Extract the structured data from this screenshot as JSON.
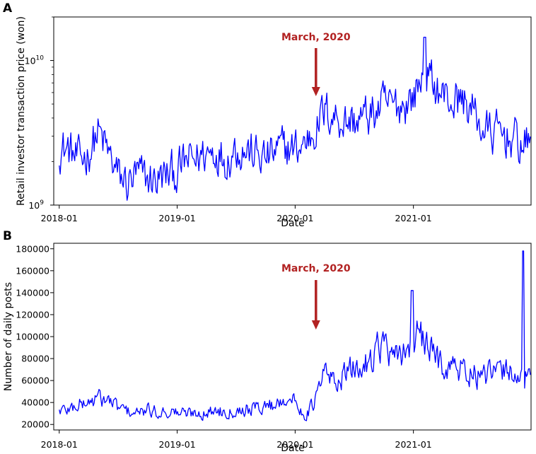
{
  "chart_data": [
    {
      "type": "line",
      "panel_label": "A",
      "xlabel": "Date",
      "ylabel": "Retail investor transaction price (won)",
      "yscale": "log",
      "xlim": [
        "2017-12-15",
        "2021-12-31"
      ],
      "ylim": [
        1000000000,
        20000000000
      ],
      "x_ticks": [
        "2018-01",
        "2019-01",
        "2020-01",
        "2021-01"
      ],
      "y_ticks": [
        {
          "value": 1000000000,
          "base": "10",
          "exp": "9"
        },
        {
          "value": 10000000000,
          "base": "10",
          "exp": "10"
        }
      ],
      "grid": false,
      "line_color": "#0000ff",
      "annotation": {
        "text": "March, 2020",
        "date": "2020-03-01",
        "color": "#b22222"
      },
      "series": [
        {
          "x": [
            "2018-01-01",
            "2018-02-01",
            "2018-03-01",
            "2018-04-01",
            "2018-05-01",
            "2018-06-01",
            "2018-07-01",
            "2018-08-01",
            "2018-09-01",
            "2018-10-01",
            "2018-11-01",
            "2018-12-01",
            "2019-01-01",
            "2019-02-01",
            "2019-03-01",
            "2019-04-01",
            "2019-05-01",
            "2019-06-01",
            "2019-07-01",
            "2019-08-01",
            "2019-09-01",
            "2019-10-01",
            "2019-11-01",
            "2019-12-01",
            "2020-01-01",
            "2020-02-01",
            "2020-03-01",
            "2020-04-01",
            "2020-05-01",
            "2020-06-01",
            "2020-07-01",
            "2020-08-01",
            "2020-09-01",
            "2020-10-01",
            "2020-11-01",
            "2020-12-01",
            "2021-01-01",
            "2021-02-01",
            "2021-03-01",
            "2021-04-01",
            "2021-05-01",
            "2021-06-01",
            "2021-07-01",
            "2021-08-01",
            "2021-09-01",
            "2021-10-01",
            "2021-11-01",
            "2021-12-01"
          ],
          "values": [
            2500000000,
            2400000000,
            2000000000,
            2300000000,
            3200000000,
            2300000000,
            1600000000,
            1400000000,
            1600000000,
            1500000000,
            1500000000,
            1600000000,
            1700000000,
            2000000000,
            2100000000,
            2300000000,
            2400000000,
            2100000000,
            2500000000,
            2400000000,
            2200000000,
            2100000000,
            2300000000,
            2500000000,
            2400000000,
            2700000000,
            3400000000,
            4400000000,
            4200000000,
            3800000000,
            3800000000,
            4000000000,
            4300000000,
            4900000000,
            4800000000,
            5000000000,
            5600000000,
            8000000000,
            7000000000,
            5800000000,
            5200000000,
            5400000000,
            4600000000,
            3400000000,
            3100000000,
            3100000000,
            2900000000,
            2600000000
          ]
        }
      ]
    },
    {
      "type": "line",
      "panel_label": "B",
      "xlabel": "Date",
      "ylabel": "Number of daily posts",
      "yscale": "linear",
      "xlim": [
        "2017-12-15",
        "2021-12-31"
      ],
      "ylim": [
        15000,
        185000
      ],
      "x_ticks": [
        "2018-01",
        "2019-01",
        "2020-01",
        "2021-01"
      ],
      "y_ticks": [
        "20000",
        "40000",
        "60000",
        "80000",
        "100000",
        "120000",
        "140000",
        "160000",
        "180000"
      ],
      "grid": false,
      "line_color": "#0000ff",
      "annotation": {
        "text": "March, 2020",
        "date": "2020-03-01",
        "color": "#b22222"
      },
      "series": [
        {
          "x": [
            "2018-01-01",
            "2018-02-01",
            "2018-03-01",
            "2018-04-01",
            "2018-05-01",
            "2018-06-01",
            "2018-07-01",
            "2018-08-01",
            "2018-09-01",
            "2018-10-01",
            "2018-11-01",
            "2018-12-01",
            "2019-01-01",
            "2019-02-01",
            "2019-03-01",
            "2019-04-01",
            "2019-05-01",
            "2019-06-01",
            "2019-07-01",
            "2019-08-01",
            "2019-09-01",
            "2019-10-01",
            "2019-11-01",
            "2019-12-01",
            "2020-01-01",
            "2020-02-01",
            "2020-03-01",
            "2020-04-01",
            "2020-05-01",
            "2020-06-01",
            "2020-07-01",
            "2020-08-01",
            "2020-09-01",
            "2020-10-01",
            "2020-11-01",
            "2020-12-01",
            "2021-01-01",
            "2021-02-01",
            "2021-03-01",
            "2021-04-01",
            "2021-05-01",
            "2021-06-01",
            "2021-07-01",
            "2021-08-01",
            "2021-09-01",
            "2021-10-01",
            "2021-11-01",
            "2021-12-01"
          ],
          "values": [
            33000,
            34000,
            38000,
            40000,
            44000,
            42000,
            36000,
            32000,
            30000,
            33000,
            31000,
            32000,
            31000,
            30000,
            31000,
            30000,
            33000,
            32000,
            33000,
            34000,
            35000,
            37000,
            38000,
            45000,
            40000,
            28000,
            40000,
            68000,
            58000,
            65000,
            70000,
            72000,
            88000,
            95000,
            75000,
            88000,
            98000,
            96000,
            84000,
            76000,
            72000,
            70000,
            66000,
            62000,
            66000,
            68000,
            70000,
            62000
          ]
        }
      ]
    }
  ]
}
